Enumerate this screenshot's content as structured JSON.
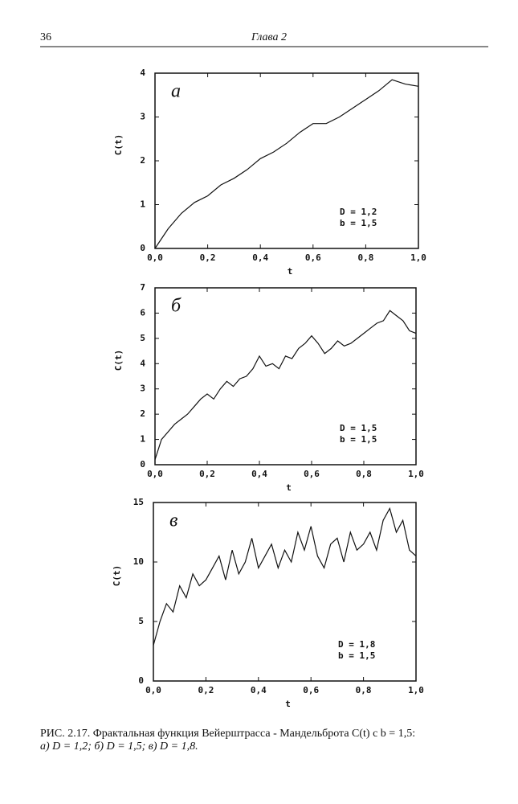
{
  "header": {
    "page_number": "36",
    "chapter": "Глава 2"
  },
  "chart_data": [
    {
      "type": "line",
      "panel_label": "а",
      "annotations": [
        "D = 1,2",
        "b = 1,5"
      ],
      "xlabel": "t",
      "ylabel": "C(t)",
      "color": "#111111",
      "x": [
        0,
        0.05,
        0.1,
        0.15,
        0.2,
        0.25,
        0.3,
        0.35,
        0.4,
        0.45,
        0.5,
        0.55,
        0.6,
        0.65,
        0.7,
        0.75,
        0.8,
        0.85,
        0.9,
        0.95,
        1.0
      ],
      "values": [
        0,
        0.45,
        0.8,
        1.05,
        1.2,
        1.45,
        1.6,
        1.8,
        2.05,
        2.2,
        2.4,
        2.65,
        2.85,
        2.85,
        3.0,
        3.2,
        3.4,
        3.6,
        3.85,
        3.75,
        3.7
      ],
      "xlim": [
        0,
        1
      ],
      "xticks": [
        {
          "value": 0,
          "label": "0,0"
        },
        {
          "value": 0.2,
          "label": "0,2"
        },
        {
          "value": 0.4,
          "label": "0,4"
        },
        {
          "value": 0.6,
          "label": "0,6"
        },
        {
          "value": 0.8,
          "label": "0,8"
        },
        {
          "value": 1,
          "label": "1,0"
        }
      ],
      "ylim": [
        0,
        4
      ],
      "yticks": [
        0,
        1,
        2,
        3,
        4
      ]
    },
    {
      "type": "line",
      "panel_label": "б",
      "annotations": [
        "D = 1,5",
        "b = 1,5"
      ],
      "xlabel": "t",
      "ylabel": "C(t)",
      "color": "#111111",
      "x": [
        0,
        0.025,
        0.05,
        0.075,
        0.1,
        0.125,
        0.15,
        0.175,
        0.2,
        0.225,
        0.25,
        0.275,
        0.3,
        0.325,
        0.35,
        0.375,
        0.4,
        0.425,
        0.45,
        0.475,
        0.5,
        0.525,
        0.55,
        0.575,
        0.6,
        0.625,
        0.65,
        0.675,
        0.7,
        0.725,
        0.75,
        0.775,
        0.8,
        0.825,
        0.85,
        0.875,
        0.9,
        0.925,
        0.95,
        0.975,
        1.0
      ],
      "values": [
        0.2,
        1.0,
        1.3,
        1.6,
        1.8,
        2.0,
        2.3,
        2.6,
        2.8,
        2.6,
        3.0,
        3.3,
        3.1,
        3.4,
        3.5,
        3.8,
        4.3,
        3.9,
        4.0,
        3.8,
        4.3,
        4.2,
        4.6,
        4.8,
        5.1,
        4.8,
        4.4,
        4.6,
        4.9,
        4.7,
        4.8,
        5.0,
        5.2,
        5.4,
        5.6,
        5.7,
        6.1,
        5.9,
        5.7,
        5.3,
        5.2
      ],
      "xlim": [
        0,
        1
      ],
      "xticks": [
        {
          "value": 0,
          "label": "0,0"
        },
        {
          "value": 0.2,
          "label": "0,2"
        },
        {
          "value": 0.4,
          "label": "0,4"
        },
        {
          "value": 0.6,
          "label": "0,6"
        },
        {
          "value": 0.8,
          "label": "0,8"
        },
        {
          "value": 1,
          "label": "1,0"
        }
      ],
      "ylim": [
        0,
        7
      ],
      "yticks": [
        0,
        1,
        2,
        3,
        4,
        5,
        6,
        7
      ]
    },
    {
      "type": "line",
      "panel_label": "в",
      "annotations": [
        "D = 1,8",
        "b = 1,5"
      ],
      "xlabel": "t",
      "ylabel": "C(t)",
      "color": "#111111",
      "x": [
        0,
        0.025,
        0.05,
        0.075,
        0.1,
        0.125,
        0.15,
        0.175,
        0.2,
        0.225,
        0.25,
        0.275,
        0.3,
        0.325,
        0.35,
        0.375,
        0.4,
        0.425,
        0.45,
        0.475,
        0.5,
        0.525,
        0.55,
        0.575,
        0.6,
        0.625,
        0.65,
        0.675,
        0.7,
        0.725,
        0.75,
        0.775,
        0.8,
        0.825,
        0.85,
        0.875,
        0.9,
        0.925,
        0.95,
        0.975,
        1.0
      ],
      "values": [
        3.0,
        5.0,
        6.5,
        5.8,
        8.0,
        7.0,
        9.0,
        8.0,
        8.5,
        9.5,
        10.5,
        8.5,
        11.0,
        9.0,
        10.0,
        12.0,
        9.5,
        10.5,
        11.5,
        9.5,
        11.0,
        10.0,
        12.5,
        11.0,
        13.0,
        10.5,
        9.5,
        11.5,
        12.0,
        10.0,
        12.5,
        11.0,
        11.5,
        12.5,
        11.0,
        13.5,
        14.5,
        12.5,
        13.5,
        11.0,
        10.5
      ],
      "xlim": [
        0,
        1
      ],
      "xticks": [
        {
          "value": 0,
          "label": "0,0"
        },
        {
          "value": 0.2,
          "label": "0,2"
        },
        {
          "value": 0.4,
          "label": "0,4"
        },
        {
          "value": 0.6,
          "label": "0,6"
        },
        {
          "value": 0.8,
          "label": "0,8"
        },
        {
          "value": 1,
          "label": "1,0"
        }
      ],
      "ylim": [
        0,
        15
      ],
      "yticks": [
        0,
        5,
        10,
        15
      ]
    }
  ],
  "caption": {
    "lines": [
      "РИС. 2.17. Фрактальная функция Вейерштрасса - Мандельброта C(t) с b = 1,5:",
      "а) D = 1,2; б) D = 1,5; в) D = 1,8."
    ]
  }
}
